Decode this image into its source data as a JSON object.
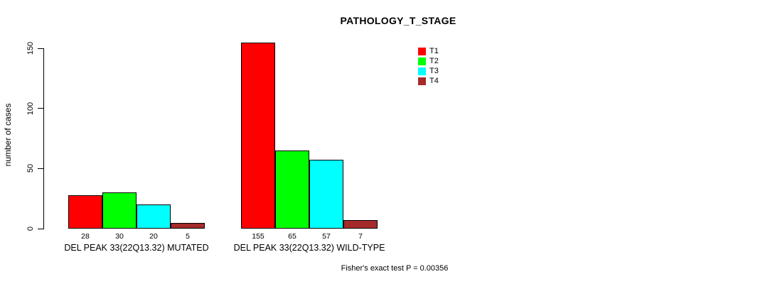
{
  "chart_data": {
    "type": "bar",
    "title": "PATHOLOGY_T_STAGE",
    "xlabel": "",
    "ylabel": "number of cases",
    "ylim": [
      0,
      150
    ],
    "yticks": [
      0,
      50,
      100,
      150
    ],
    "grid": false,
    "legend_position": "top-right",
    "categories": [
      "DEL PEAK 33(22Q13.32) MUTATED",
      "DEL PEAK 33(22Q13.32) WILD-TYPE"
    ],
    "series": [
      {
        "name": "T1",
        "color": "#FF0000",
        "values": [
          28,
          155
        ]
      },
      {
        "name": "T2",
        "color": "#00FF00",
        "values": [
          30,
          65
        ]
      },
      {
        "name": "T3",
        "color": "#00FFFF",
        "values": [
          20,
          57
        ]
      },
      {
        "name": "T4",
        "color": "#A52A2A",
        "values": [
          5,
          7
        ]
      }
    ],
    "bar_value_labels": [
      [
        28,
        30,
        20,
        5
      ],
      [
        155,
        65,
        57,
        7
      ]
    ],
    "annotation": "Fisher's exact test P = 0.00356"
  },
  "colors": {
    "background": "#ffffff",
    "axis": "#000000",
    "text": "#000000"
  }
}
